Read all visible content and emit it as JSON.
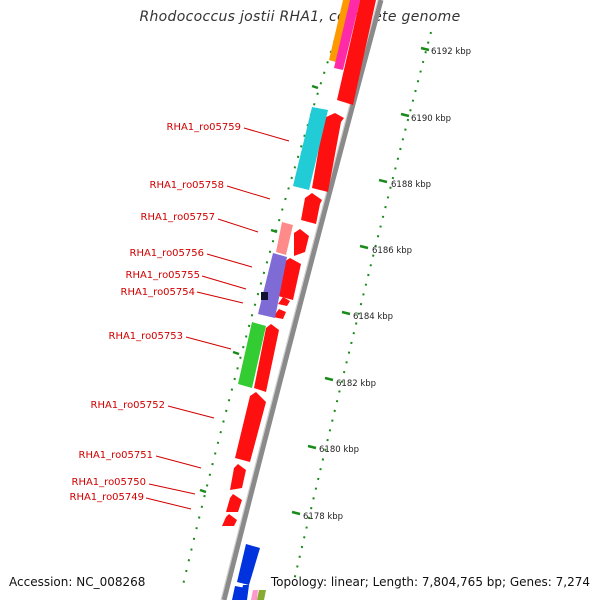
{
  "title": "Rhodococcus jostii RHA1, complete genome",
  "footer": {
    "accession": "Accession: NC_008268",
    "summary": "Topology: linear; Length: 7,804,765 bp; Genes: 7,274"
  },
  "colors": {
    "backbone": "#8a8a8a",
    "forward_gene": "#ff0000",
    "gene_label": "#d10000",
    "leader_line": "#d10000",
    "tick": "#1a8a1a",
    "track_dots": "#1a8a1a"
  },
  "gene_labels": [
    "RHA1_ro05759",
    "RHA1_ro05758",
    "RHA1_ro05757",
    "RHA1_ro05756",
    "RHA1_ro05755",
    "RHA1_ro05754",
    "RHA1_ro05753",
    "RHA1_ro05752",
    "RHA1_ro05751",
    "RHA1_ro05750",
    "RHA1_ro05749"
  ],
  "kbp_labels": [
    "6192 kbp",
    "6190 kbp",
    "6188 kbp",
    "6186 kbp",
    "6184 kbp",
    "6182 kbp",
    "6180 kbp",
    "6178 kbp"
  ]
}
